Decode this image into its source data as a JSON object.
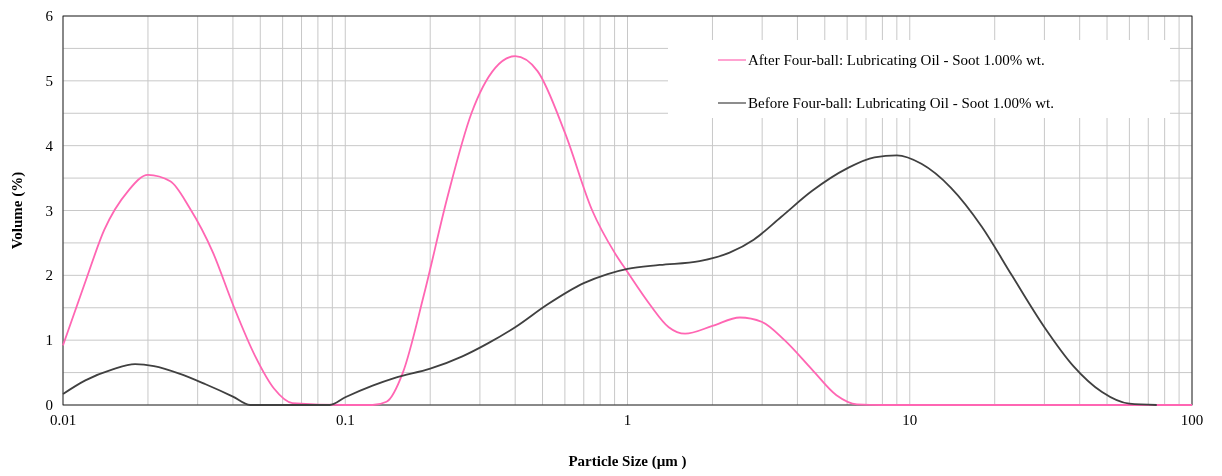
{
  "chart_data": {
    "type": "line",
    "xlabel": "Particle Size (µm )",
    "ylabel": "Volume (%)",
    "log": "x",
    "grid": true,
    "legend": "top right",
    "line_style": "solid",
    "marker": "none",
    "xlim": [
      0.01,
      100
    ],
    "ylim": [
      0,
      6
    ],
    "xticks": [
      0.01,
      {
        "value": 0.02,
        "label": null
      },
      {
        "value": 0.03,
        "label": null
      },
      {
        "value": 0.04,
        "label": null
      },
      {
        "value": 0.05,
        "label": null
      },
      {
        "value": 0.06,
        "label": null
      },
      {
        "value": 0.07,
        "label": null
      },
      {
        "value": 0.08,
        "label": null
      },
      {
        "value": 0.09,
        "label": null
      },
      0.1,
      {
        "value": 0.2,
        "label": null
      },
      {
        "value": 0.3,
        "label": null
      },
      {
        "value": 0.4,
        "label": null
      },
      {
        "value": 0.5,
        "label": null
      },
      {
        "value": 0.6,
        "label": null
      },
      {
        "value": 0.7,
        "label": null
      },
      {
        "value": 0.8,
        "label": null
      },
      {
        "value": 0.9,
        "label": null
      },
      1,
      {
        "value": 2,
        "label": null
      },
      {
        "value": 3,
        "label": null
      },
      {
        "value": 4,
        "label": null
      },
      {
        "value": 5,
        "label": null
      },
      {
        "value": 6,
        "label": null
      },
      {
        "value": 7,
        "label": null
      },
      {
        "value": 8,
        "label": null
      },
      {
        "value": 9,
        "label": null
      },
      10,
      {
        "value": 20,
        "label": null
      },
      {
        "value": 30,
        "label": null
      },
      {
        "value": 40,
        "label": null
      },
      {
        "value": 50,
        "label": null
      },
      {
        "value": 60,
        "label": null
      },
      {
        "value": 70,
        "label": null
      },
      {
        "value": 80,
        "label": null
      },
      {
        "value": 90,
        "label": null
      },
      100
    ],
    "yticks": [
      0,
      {
        "value": 0.5,
        "label": null
      },
      1,
      {
        "value": 1.5,
        "label": null
      },
      2,
      {
        "value": 2.5,
        "label": null
      },
      3,
      {
        "value": 3.5,
        "label": null
      },
      4,
      {
        "value": 4.5,
        "label": null
      },
      5,
      {
        "value": 5.5,
        "label": null
      },
      6
    ],
    "series": [
      {
        "name": "After Four-ball: Lubricating Oil - Soot 1.00% wt.",
        "color": "#ff66b3",
        "x": [
          0.01,
          0.012,
          0.014,
          0.017,
          0.02,
          0.024,
          0.028,
          0.034,
          0.04,
          0.048,
          0.056,
          0.065,
          0.1,
          0.11,
          0.125,
          0.14,
          0.16,
          0.19,
          0.23,
          0.28,
          0.34,
          0.4,
          0.48,
          0.6,
          0.75,
          0.9,
          1.0,
          1.2,
          1.4,
          1.6,
          2.0,
          2.5,
          3.0,
          3.6,
          4.5,
          5.5,
          6.5,
          8,
          20,
          40,
          100
        ],
        "values": [
          0.92,
          1.9,
          2.7,
          3.3,
          3.55,
          3.45,
          3.05,
          2.35,
          1.55,
          0.75,
          0.25,
          0.03,
          0,
          0,
          0,
          0.05,
          0.5,
          1.7,
          3.2,
          4.5,
          5.2,
          5.38,
          5.15,
          4.2,
          3.0,
          2.35,
          2.05,
          1.55,
          1.2,
          1.1,
          1.22,
          1.35,
          1.28,
          1.0,
          0.55,
          0.15,
          0.01,
          0,
          0,
          0,
          0
        ]
      },
      {
        "name": "Before Four-ball: Lubricating Oil - Soot 1.00% wt.",
        "color": "#404040",
        "x": [
          0.01,
          0.012,
          0.015,
          0.018,
          0.021,
          0.026,
          0.032,
          0.04,
          0.046,
          0.06,
          0.075,
          0.088,
          0.1,
          0.125,
          0.15,
          0.2,
          0.26,
          0.32,
          0.4,
          0.52,
          0.7,
          0.85,
          1.0,
          1.3,
          1.8,
          2.3,
          2.8,
          3.5,
          4.5,
          6,
          7.5,
          9,
          11,
          14,
          18,
          23,
          30,
          38,
          48,
          60,
          75
        ],
        "values": [
          0.17,
          0.38,
          0.55,
          0.63,
          0.6,
          0.48,
          0.32,
          0.13,
          0,
          0,
          0,
          0,
          0.12,
          0.3,
          0.42,
          0.56,
          0.75,
          0.95,
          1.2,
          1.55,
          1.88,
          2.02,
          2.1,
          2.16,
          2.22,
          2.35,
          2.55,
          2.9,
          3.3,
          3.65,
          3.82,
          3.85,
          3.72,
          3.35,
          2.75,
          2.0,
          1.2,
          0.6,
          0.2,
          0.02,
          0
        ]
      }
    ]
  }
}
